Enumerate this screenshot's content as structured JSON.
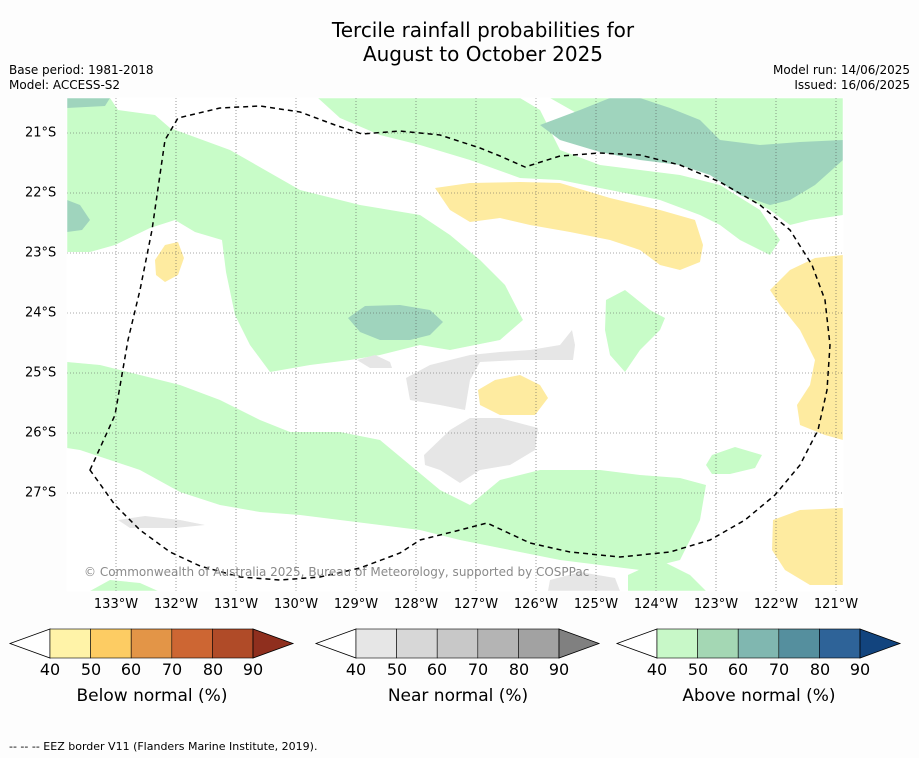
{
  "title_line1": "Tercile rainfall probabilities for",
  "title_line2": "August to October 2025",
  "base_period": "Base period: 1981-2018",
  "model": "Model: ACCESS-S2",
  "model_run": "Model run: 14/06/2025",
  "issued": "Issued: 16/06/2025",
  "copyright": "© Commonwealth of Australia 2025, Bureau of Meteorology, supported by COSPPac",
  "footer": "-- -- -- EEZ border V11 (Flanders Marine Institute, 2019).",
  "x_ticks": [
    "133°W",
    "132°W",
    "131°W",
    "130°W",
    "129°W",
    "128°W",
    "127°W",
    "126°W",
    "125°W",
    "124°W",
    "123°W",
    "122°W",
    "121°W"
  ],
  "y_ticks": [
    "21°S",
    "22°S",
    "23°S",
    "24°S",
    "25°S",
    "26°S",
    "27°S"
  ],
  "colorbars": [
    {
      "label": "Below normal (%)",
      "ticks": [
        "40",
        "50",
        "60",
        "70",
        "80",
        "90"
      ],
      "colors": [
        "#fff3a8",
        "#fdcc63",
        "#e39547",
        "#cd6633",
        "#b04b28",
        "#8f2f1e"
      ]
    },
    {
      "label": "Near normal (%)",
      "ticks": [
        "40",
        "50",
        "60",
        "70",
        "80",
        "90"
      ],
      "colors": [
        "#e6e6e6",
        "#d7d7d7",
        "#c8c8c8",
        "#b4b4b4",
        "#a2a2a2",
        "#808080"
      ]
    },
    {
      "label": "Above normal (%)",
      "ticks": [
        "40",
        "50",
        "60",
        "70",
        "80",
        "90"
      ],
      "colors": [
        "#c8f8c8",
        "#a4d7b4",
        "#80b7b0",
        "#558f9e",
        "#2e6398",
        "#12447e"
      ]
    }
  ],
  "colors": {
    "above_40": "#c8fcc8",
    "above_50": "#9fd4bd",
    "below_40": "#feeba0",
    "near_40": "#e6e6e6"
  }
}
